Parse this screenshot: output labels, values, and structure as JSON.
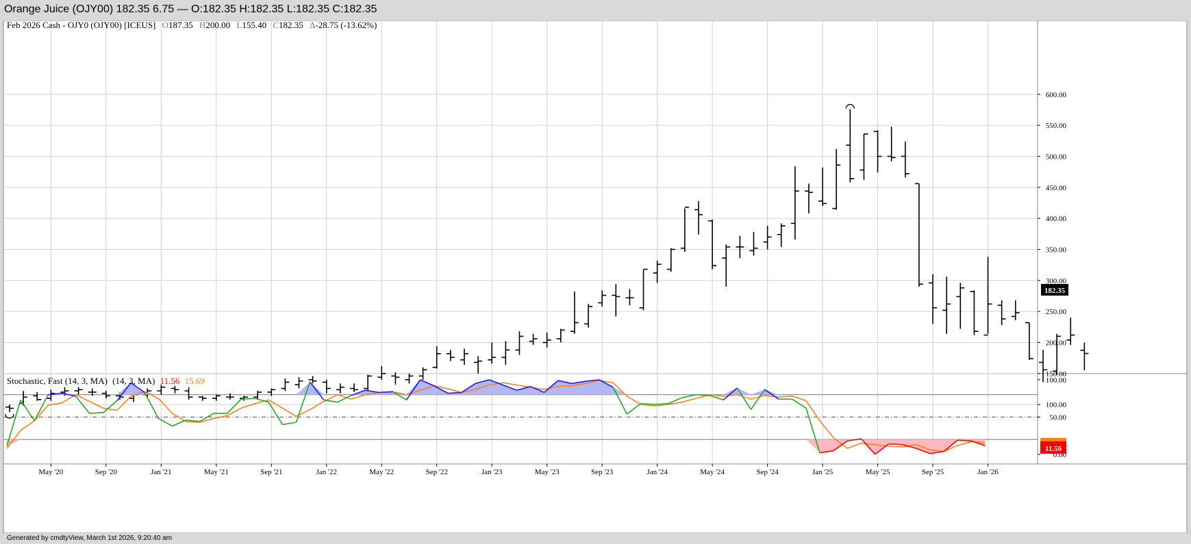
{
  "window": {
    "title": "Orange Juice (OJY00) 182.35 6.75 — O:182.35 H:182.35 L:182.35 C:182.35",
    "footer": "Generated by cmdtyView, March 1st 2026, 9:20:40 am"
  },
  "price_panel": {
    "symbol": "Feb 2026 Cash - OJY0 (OJY00) [ICEUS]",
    "open_label": "O",
    "open": "187.35",
    "high_label": "H",
    "high": "200.00",
    "low_label": "L",
    "low": "155.40",
    "close_label": "C",
    "close": "182.35",
    "change_label": "Δ",
    "change": "-28.75 (-13.62%)",
    "last_tag": "182.35"
  },
  "stoch_panel": {
    "name": "Stochastic, Fast (14, 3, MA)",
    "params": "(14, 3, MA)",
    "k_value": "11.56",
    "d_value": "15.69",
    "last_tag": "11.56"
  },
  "colors": {
    "bars": "#000000",
    "k_up": "#1a1aff",
    "k_mid": "#22aa22",
    "k_down": "#ff0000",
    "d_line": "#ff7f1a",
    "overbought_fill": "#b3b8f5",
    "oversold_fill": "#ffb8c0",
    "grid": "#d0d0d0"
  },
  "chart_data": [
    {
      "type": "ohlc",
      "title": "Feb 2026 Cash - OJY0 (OJY00) [ICEUS]",
      "interval": "monthly",
      "ylim": [
        80,
        610
      ],
      "y_ticks": [
        "100.00",
        "150.00",
        "200.00",
        "250.00",
        "300.00",
        "350.00",
        "400.00",
        "450.00",
        "500.00",
        "550.00",
        "600.00"
      ],
      "x_ticks": [
        "May '20",
        "Sep '20",
        "Jan '21",
        "May '21",
        "Sep '21",
        "Jan '22",
        "May '22",
        "Sep '22",
        "Jan '23",
        "May '23",
        "Sep '23",
        "Jan '24",
        "May '24",
        "Sep '24",
        "Jan '25",
        "May '25",
        "Sep '25",
        "Jan '26"
      ],
      "bars": [
        [
          96,
          100,
          88,
          94
        ],
        [
          102,
          122,
          98,
          112
        ],
        [
          114,
          120,
          106,
          108
        ],
        [
          110,
          124,
          106,
          118
        ],
        [
          120,
          128,
          114,
          122
        ],
        [
          122,
          128,
          116,
          124
        ],
        [
          120,
          126,
          114,
          120
        ],
        [
          118,
          122,
          110,
          114
        ],
        [
          114,
          120,
          108,
          112
        ],
        [
          110,
          118,
          104,
          116
        ],
        [
          116,
          126,
          112,
          122
        ],
        [
          122,
          132,
          116,
          128
        ],
        [
          126,
          130,
          118,
          124
        ],
        [
          122,
          128,
          108,
          112
        ],
        [
          112,
          114,
          106,
          110
        ],
        [
          110,
          116,
          106,
          114
        ],
        [
          112,
          118,
          108,
          112
        ],
        [
          110,
          114,
          106,
          112
        ],
        [
          112,
          122,
          108,
          120
        ],
        [
          120,
          126,
          114,
          124
        ],
        [
          126,
          142,
          122,
          136
        ],
        [
          132,
          144,
          126,
          138
        ],
        [
          140,
          146,
          134,
          138
        ],
        [
          136,
          140,
          118,
          126
        ],
        [
          124,
          134,
          118,
          128
        ],
        [
          126,
          134,
          120,
          124
        ],
        [
          126,
          148,
          120,
          146
        ],
        [
          144,
          162,
          140,
          150
        ],
        [
          146,
          152,
          132,
          144
        ],
        [
          140,
          150,
          134,
          146
        ],
        [
          146,
          160,
          140,
          156
        ],
        [
          160,
          194,
          158,
          182
        ],
        [
          182,
          188,
          170,
          176
        ],
        [
          172,
          190,
          164,
          182
        ],
        [
          168,
          178,
          150,
          170
        ],
        [
          172,
          200,
          166,
          176
        ],
        [
          176,
          202,
          164,
          188
        ],
        [
          188,
          218,
          180,
          210
        ],
        [
          202,
          214,
          196,
          206
        ],
        [
          200,
          216,
          192,
          204
        ],
        [
          206,
          222,
          200,
          220
        ],
        [
          218,
          282,
          214,
          232
        ],
        [
          230,
          262,
          224,
          258
        ],
        [
          264,
          284,
          258,
          276
        ],
        [
          276,
          294,
          242,
          274
        ],
        [
          272,
          286,
          260,
          272
        ],
        [
          256,
          318,
          252,
          318
        ],
        [
          312,
          332,
          296,
          326
        ],
        [
          318,
          352,
          314,
          350
        ],
        [
          352,
          416,
          346,
          418
        ],
        [
          414,
          428,
          374,
          406
        ],
        [
          396,
          398,
          318,
          324
        ],
        [
          336,
          358,
          290,
          354
        ],
        [
          354,
          372,
          336,
          354
        ],
        [
          348,
          378,
          340,
          352
        ],
        [
          362,
          388,
          350,
          370
        ],
        [
          374,
          392,
          354,
          388
        ],
        [
          392,
          484,
          366,
          444
        ],
        [
          444,
          456,
          408,
          442
        ],
        [
          428,
          482,
          420,
          424
        ],
        [
          416,
          512,
          414,
          486
        ],
        [
          518,
          576,
          458,
          464
        ],
        [
          478,
          536,
          462,
          536
        ],
        [
          540,
          542,
          474,
          500
        ],
        [
          500,
          548,
          492,
          498
        ],
        [
          500,
          524,
          466,
          472
        ],
        [
          456,
          456,
          290,
          294
        ],
        [
          296,
          310,
          230,
          256
        ],
        [
          252,
          306,
          214,
          262
        ],
        [
          274,
          296,
          222,
          288
        ],
        [
          282,
          284,
          212,
          218
        ],
        [
          212,
          338,
          214,
          262
        ],
        [
          260,
          268,
          228,
          238
        ],
        [
          242,
          268,
          236,
          248
        ],
        [
          232,
          232,
          172,
          174
        ],
        [
          168,
          188,
          136,
          156
        ],
        [
          154,
          214,
          148,
          210
        ],
        [
          204,
          240,
          196,
          212
        ],
        [
          187.35,
          200,
          155.4,
          182.35
        ]
      ],
      "last": 182.35
    },
    {
      "type": "line",
      "title": "Stochastic, Fast (14, 3, MA)",
      "ylim": [
        -5,
        103
      ],
      "y_ticks": [
        "0.00",
        "50.00",
        "100.00"
      ],
      "overbought": 80,
      "oversold": 20,
      "midline": 50,
      "series": [
        {
          "name": "%K",
          "values": [
            11,
            73,
            45,
            80,
            82,
            78,
            55,
            56,
            72,
            96,
            83,
            48,
            38,
            46,
            44,
            55,
            55,
            74,
            75,
            70,
            40,
            43,
            97,
            73,
            70,
            79,
            86,
            83,
            84,
            73,
            100,
            92,
            82,
            83,
            95,
            100,
            93,
            86,
            91,
            83,
            99,
            95,
            98,
            100,
            90,
            54,
            68,
            67,
            68,
            76,
            80,
            79,
            73,
            89,
            60,
            87,
            74,
            74,
            62,
            2,
            5,
            18,
            21,
            0,
            14,
            13,
            8,
            1,
            4,
            19,
            18,
            11.56
          ]
        },
        {
          "name": "%D",
          "values": [
            8,
            32,
            45,
            66,
            69,
            80,
            71,
            62,
            59,
            78,
            84,
            75,
            55,
            44,
            43,
            48,
            52,
            62,
            68,
            73,
            62,
            51,
            60,
            71,
            80,
            74,
            80,
            83,
            84,
            80,
            86,
            92,
            88,
            83,
            87,
            93,
            96,
            93,
            90,
            87,
            91,
            92,
            95,
            99,
            96,
            78,
            67,
            65,
            67,
            70,
            75,
            80,
            78,
            80,
            74,
            79,
            77,
            78,
            72,
            45,
            22,
            8,
            15,
            13,
            11,
            10,
            13,
            6,
            4,
            12,
            17,
            15.69
          ]
        }
      ]
    }
  ]
}
